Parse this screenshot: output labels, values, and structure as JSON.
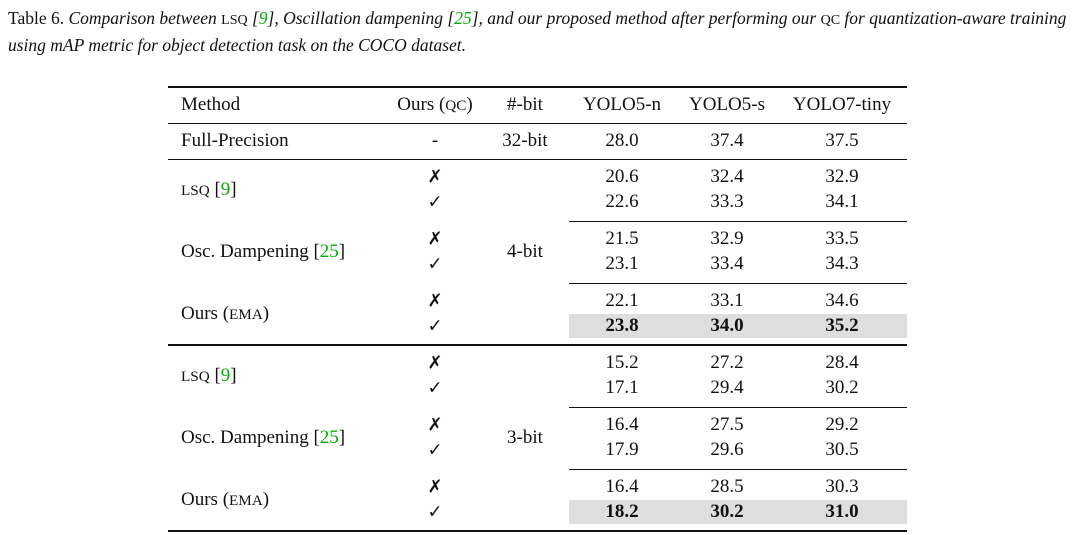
{
  "caption": {
    "label": "Table 6.",
    "parts": [
      {
        "text": "Comparison between "
      },
      {
        "text": "LSQ",
        "smallcaps": true
      },
      {
        "text": " ["
      },
      {
        "text": "9",
        "cite": true
      },
      {
        "text": "], Oscillation dampening ["
      },
      {
        "text": "25",
        "cite": true
      },
      {
        "text": "], and our proposed method after performing our "
      },
      {
        "text": "QC",
        "smallcaps": true
      },
      {
        "text": " for quantization-aware training using mAP metric for object detection task on the COCO dataset."
      }
    ]
  },
  "table": {
    "header": [
      [
        {
          "text": "Method"
        }
      ],
      [
        {
          "text": "Ours ("
        },
        {
          "text": "QC",
          "smallcaps": true
        },
        {
          "text": ")"
        }
      ],
      [
        {
          "text": "#-bit"
        }
      ],
      [
        {
          "text": "YOLO5-n"
        }
      ],
      [
        {
          "text": "YOLO5-s"
        }
      ],
      [
        {
          "text": "YOLO7-tiny"
        }
      ]
    ],
    "full_precision": {
      "method": [
        {
          "text": "Full-Precision"
        }
      ],
      "ours": "-",
      "bits": "32-bit",
      "values": [
        "28.0",
        "37.4",
        "37.5"
      ]
    },
    "blocks": [
      {
        "bits": "4-bit",
        "groups": [
          {
            "method": [
              {
                "text": "LSQ",
                "smallcaps": true
              },
              {
                "text": " ["
              },
              {
                "text": "9",
                "cite": true
              },
              {
                "text": "]"
              }
            ],
            "rows": [
              {
                "ours": "✗",
                "values": [
                  "20.6",
                  "32.4",
                  "32.9"
                ]
              },
              {
                "ours": "✓",
                "values": [
                  "22.6",
                  "33.3",
                  "34.1"
                ]
              }
            ]
          },
          {
            "method": [
              {
                "text": "Osc. Dampening ["
              },
              {
                "text": "25",
                "cite": true
              },
              {
                "text": "]"
              }
            ],
            "rows": [
              {
                "ours": "✗",
                "values": [
                  "21.5",
                  "32.9",
                  "33.5"
                ]
              },
              {
                "ours": "✓",
                "values": [
                  "23.1",
                  "33.4",
                  "34.3"
                ]
              }
            ]
          },
          {
            "method": [
              {
                "text": "Ours ("
              },
              {
                "text": "EMA",
                "smallcaps": true
              },
              {
                "text": ")"
              }
            ],
            "rows": [
              {
                "ours": "✗",
                "values": [
                  "22.1",
                  "33.1",
                  "34.6"
                ]
              },
              {
                "ours": "✓",
                "values": [
                  "23.8",
                  "34.0",
                  "35.2"
                ],
                "best": true
              }
            ]
          }
        ]
      },
      {
        "bits": "3-bit",
        "groups": [
          {
            "method": [
              {
                "text": "LSQ",
                "smallcaps": true
              },
              {
                "text": " ["
              },
              {
                "text": "9",
                "cite": true
              },
              {
                "text": "]"
              }
            ],
            "rows": [
              {
                "ours": "✗",
                "values": [
                  "15.2",
                  "27.2",
                  "28.4"
                ]
              },
              {
                "ours": "✓",
                "values": [
                  "17.1",
                  "29.4",
                  "30.2"
                ]
              }
            ]
          },
          {
            "method": [
              {
                "text": "Osc. Dampening ["
              },
              {
                "text": "25",
                "cite": true
              },
              {
                "text": "]"
              }
            ],
            "rows": [
              {
                "ours": "✗",
                "values": [
                  "16.4",
                  "27.5",
                  "29.2"
                ]
              },
              {
                "ours": "✓",
                "values": [
                  "17.9",
                  "29.6",
                  "30.5"
                ]
              }
            ]
          },
          {
            "method": [
              {
                "text": "Ours ("
              },
              {
                "text": "EMA",
                "smallcaps": true
              },
              {
                "text": ")"
              }
            ],
            "rows": [
              {
                "ours": "✗",
                "values": [
                  "16.4",
                  "28.5",
                  "30.3"
                ]
              },
              {
                "ours": "✓",
                "values": [
                  "18.2",
                  "30.2",
                  "31.0"
                ],
                "best": true
              }
            ]
          }
        ]
      }
    ]
  }
}
